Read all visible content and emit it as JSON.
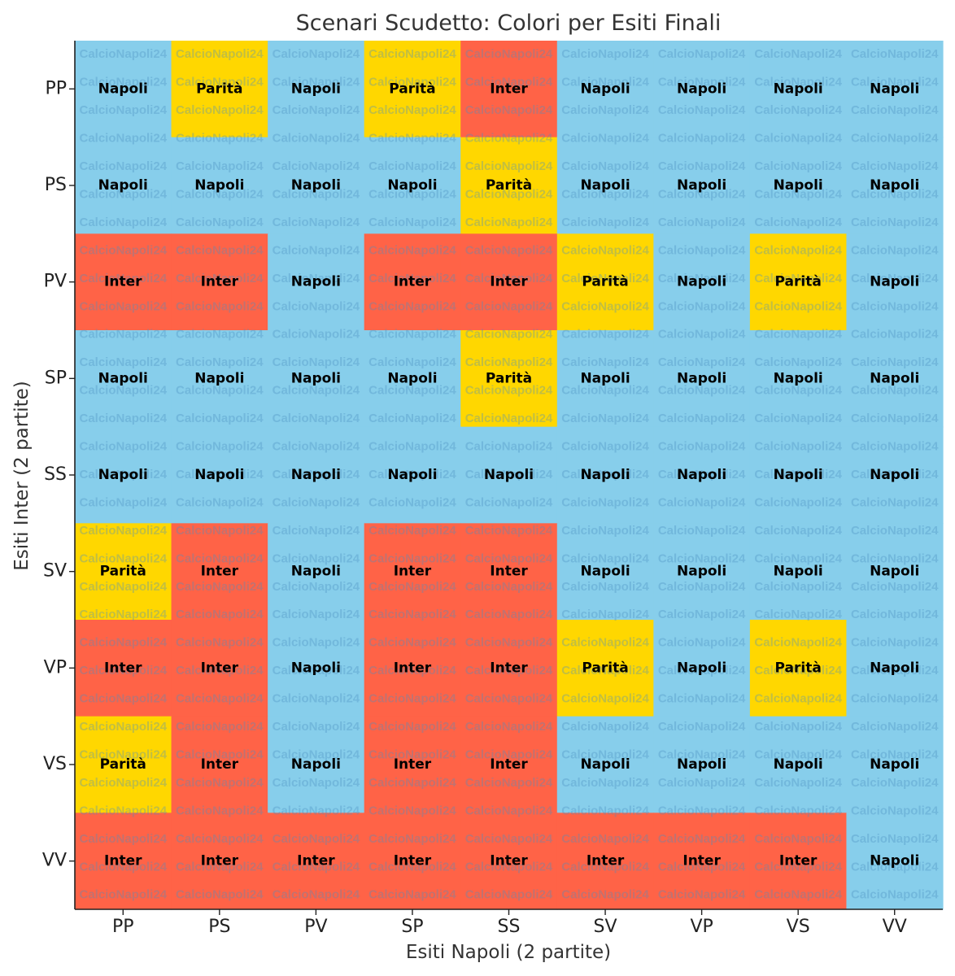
{
  "chart_data": {
    "type": "heatmap",
    "title": "Scenari Scudetto: Colori per Esiti Finali",
    "xlabel": "Esiti Napoli (2 partite)",
    "ylabel": "Esiti Inter (2 partite)",
    "x_categories": [
      "PP",
      "PS",
      "PV",
      "SP",
      "SS",
      "SV",
      "VP",
      "VS",
      "VV"
    ],
    "y_categories": [
      "PP",
      "PS",
      "PV",
      "SP",
      "SS",
      "SV",
      "VP",
      "VS",
      "VV"
    ],
    "watermark": "CalcioNapoli24",
    "colors": {
      "Napoli": "#87CEEB",
      "Inter": "#FF6347",
      "Parità": "#FFD700"
    },
    "cells": [
      [
        "Napoli",
        "Parità",
        "Napoli",
        "Parità",
        "Inter",
        "Napoli",
        "Napoli",
        "Napoli",
        "Napoli"
      ],
      [
        "Napoli",
        "Napoli",
        "Napoli",
        "Napoli",
        "Parità",
        "Napoli",
        "Napoli",
        "Napoli",
        "Napoli"
      ],
      [
        "Inter",
        "Inter",
        "Napoli",
        "Inter",
        "Inter",
        "Parità",
        "Napoli",
        "Parità",
        "Napoli"
      ],
      [
        "Napoli",
        "Napoli",
        "Napoli",
        "Napoli",
        "Parità",
        "Napoli",
        "Napoli",
        "Napoli",
        "Napoli"
      ],
      [
        "Napoli",
        "Napoli",
        "Napoli",
        "Napoli",
        "Napoli",
        "Napoli",
        "Napoli",
        "Napoli",
        "Napoli"
      ],
      [
        "Parità",
        "Inter",
        "Napoli",
        "Inter",
        "Inter",
        "Napoli",
        "Napoli",
        "Napoli",
        "Napoli"
      ],
      [
        "Inter",
        "Inter",
        "Napoli",
        "Inter",
        "Inter",
        "Parità",
        "Napoli",
        "Parità",
        "Napoli"
      ],
      [
        "Parità",
        "Inter",
        "Napoli",
        "Inter",
        "Inter",
        "Napoli",
        "Napoli",
        "Napoli",
        "Napoli"
      ],
      [
        "Inter",
        "Inter",
        "Inter",
        "Inter",
        "Inter",
        "Inter",
        "Inter",
        "Inter",
        "Napoli"
      ]
    ]
  }
}
